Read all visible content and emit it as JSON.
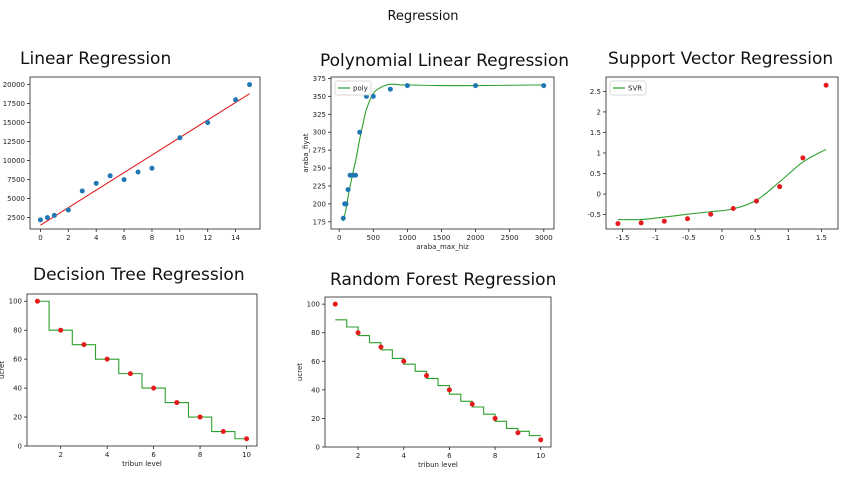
{
  "page_title": "Regression",
  "colors": {
    "dot_blue": "#1f77b4",
    "dot_red": "#e41a1c",
    "line_red": "#e41a1c",
    "line_green": "#2ca02c"
  },
  "chart_data": [
    {
      "id": "linear",
      "type": "scatter",
      "title": "Linear Regression",
      "xlabel": "",
      "ylabel": "",
      "xlim": [
        -0.75,
        15.75
      ],
      "ylim": [
        1000,
        21000
      ],
      "xticks": [
        0,
        2,
        4,
        6,
        8,
        10,
        12,
        14
      ],
      "yticks": [
        2500,
        5000,
        7500,
        10000,
        12500,
        15000,
        17500,
        20000
      ],
      "grid": false,
      "points": {
        "x": [
          0,
          0.5,
          1,
          2,
          3,
          4,
          5,
          6,
          7,
          8,
          10,
          12,
          14,
          15
        ],
        "y": [
          2200,
          2500,
          2800,
          3500,
          6000,
          7000,
          8000,
          7500,
          8500,
          9000,
          13000,
          15000,
          18000,
          20000
        ],
        "color": "#1f77b4"
      },
      "line": {
        "x": [
          0,
          15
        ],
        "y": [
          1500,
          18800
        ],
        "color": "#e41a1c",
        "kind": "straight"
      }
    },
    {
      "id": "poly",
      "type": "line",
      "title": "Polynomial Linear Regression",
      "xlabel": "araba_max_hiz",
      "ylabel": "araba_fiyat",
      "xlim": [
        -120,
        3150
      ],
      "ylim": [
        165,
        377
      ],
      "xticks": [
        0,
        500,
        1000,
        1500,
        2000,
        2500,
        3000
      ],
      "yticks": [
        175,
        200,
        225,
        250,
        275,
        300,
        325,
        350,
        375
      ],
      "grid": false,
      "legend": {
        "position": "top-left",
        "entries": [
          "poly"
        ]
      },
      "points": {
        "x": [
          60,
          80,
          100,
          130,
          160,
          200,
          240,
          300,
          400,
          500,
          750,
          1000,
          2000,
          3000
        ],
        "y": [
          180,
          200,
          200,
          220,
          240,
          240,
          240,
          300,
          350,
          350,
          360,
          365,
          365,
          365
        ],
        "color": "#1f77b4"
      },
      "line": {
        "x": [
          60,
          100,
          150,
          200,
          250,
          300,
          350,
          400,
          500,
          600,
          700,
          800,
          900,
          1000,
          1500,
          2000,
          2500,
          3000
        ],
        "y": [
          176,
          193,
          220,
          243,
          264,
          290,
          312,
          332,
          354,
          362,
          366,
          367,
          366,
          366,
          365,
          365,
          365.5,
          366
        ],
        "color": "#2ca02c",
        "kind": "curve"
      }
    },
    {
      "id": "svr",
      "type": "line",
      "title": "Support Vector Regression",
      "xlabel": "",
      "ylabel": "",
      "xlim": [
        -1.75,
        1.75
      ],
      "ylim": [
        -0.85,
        2.85
      ],
      "xticks": [
        -1.5,
        -1.0,
        -0.5,
        0.0,
        0.5,
        1.0,
        1.5
      ],
      "yticks": [
        -0.5,
        0.0,
        0.5,
        1.0,
        1.5,
        2.0,
        2.5
      ],
      "grid": false,
      "legend": {
        "position": "top-left",
        "entries": [
          "SVR"
        ]
      },
      "points": {
        "x": [
          -1.57,
          -1.22,
          -0.87,
          -0.52,
          -0.17,
          0.17,
          0.52,
          0.87,
          1.22,
          1.57
        ],
        "y": [
          -0.72,
          -0.7,
          -0.66,
          -0.6,
          -0.49,
          -0.35,
          -0.17,
          0.18,
          0.88,
          2.65
        ],
        "color": "#e41a1c"
      },
      "line": {
        "x": [
          -1.57,
          -1.22,
          -0.87,
          -0.52,
          -0.17,
          0.17,
          0.52,
          0.87,
          1.22,
          1.57
        ],
        "y": [
          -0.62,
          -0.62,
          -0.56,
          -0.49,
          -0.43,
          -0.36,
          -0.15,
          0.3,
          0.78,
          1.09
        ],
        "color": "#2ca02c",
        "kind": "curve"
      }
    },
    {
      "id": "tree",
      "type": "line",
      "title": "Decision Tree Regression",
      "xlabel": "tribun level",
      "ylabel": "ucret",
      "xlim": [
        0.55,
        10.45
      ],
      "ylim": [
        0,
        105
      ],
      "xticks": [
        2,
        4,
        6,
        8,
        10
      ],
      "yticks": [
        0,
        20,
        40,
        60,
        80,
        100
      ],
      "grid": false,
      "points": {
        "x": [
          1,
          2,
          3,
          4,
          5,
          6,
          7,
          8,
          9,
          10
        ],
        "y": [
          100,
          80,
          70,
          60,
          50,
          40,
          30,
          20,
          10,
          5
        ],
        "color": "#e41a1c"
      },
      "line": {
        "x": [
          1,
          1.5,
          1.5,
          2.5,
          2.5,
          3.5,
          3.5,
          4.5,
          4.5,
          5.5,
          5.5,
          6.5,
          6.5,
          7.5,
          7.5,
          8.5,
          8.5,
          9.5,
          9.5,
          10
        ],
        "y": [
          100,
          100,
          80,
          80,
          70,
          70,
          60,
          60,
          50,
          50,
          40,
          40,
          30,
          30,
          20,
          20,
          10,
          10,
          5,
          5
        ],
        "color": "#2ca02c",
        "kind": "straight"
      }
    },
    {
      "id": "forest",
      "type": "line",
      "title": "Random Forest Regression",
      "xlabel": "tribun level",
      "ylabel": "ucret",
      "xlim": [
        0.55,
        10.45
      ],
      "ylim": [
        0,
        105
      ],
      "xticks": [
        2,
        4,
        6,
        8,
        10
      ],
      "yticks": [
        0,
        20,
        40,
        60,
        80,
        100
      ],
      "grid": false,
      "points": {
        "x": [
          1,
          2,
          3,
          4,
          5,
          6,
          7,
          8,
          9,
          10
        ],
        "y": [
          100,
          80,
          70,
          60,
          50,
          40,
          30,
          20,
          10,
          5
        ],
        "color": "#e41a1c"
      },
      "line": {
        "x": [
          1,
          1.5,
          1.5,
          2,
          2,
          2.5,
          2.5,
          3,
          3,
          3.5,
          3.5,
          4,
          4,
          4.5,
          4.5,
          5,
          5,
          5.5,
          5.5,
          6,
          6,
          6.5,
          6.5,
          7,
          7,
          7.5,
          7.5,
          8,
          8,
          8.5,
          8.5,
          9,
          9,
          9.5,
          9.5,
          10
        ],
        "y": [
          89,
          89,
          84,
          84,
          78,
          78,
          73,
          73,
          68,
          68,
          62,
          62,
          58,
          58,
          53,
          53,
          48,
          48,
          43,
          43,
          37,
          37,
          32,
          32,
          28,
          28,
          23,
          23,
          18,
          18,
          13,
          13,
          11,
          11,
          8,
          8
        ],
        "color": "#2ca02c",
        "kind": "straight"
      }
    }
  ]
}
